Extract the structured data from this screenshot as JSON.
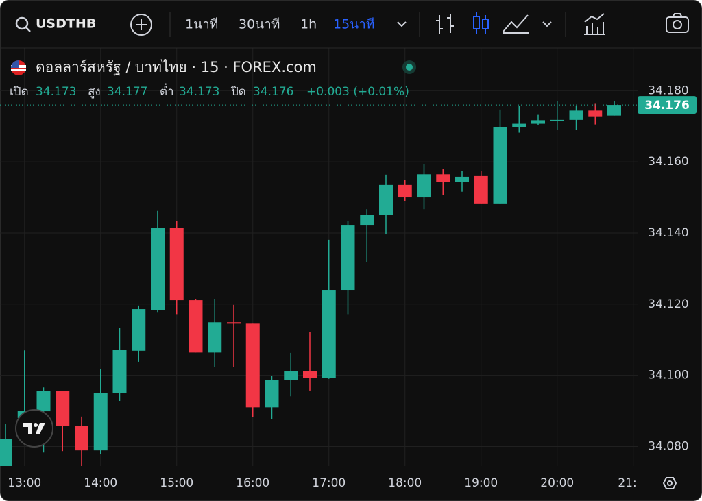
{
  "toolbar": {
    "symbol": "USDTHB",
    "intervals": [
      "1นาที",
      "30นาที",
      "1h",
      "15นาที"
    ],
    "active_interval": "15นาที"
  },
  "legend": {
    "title": "ดอลลาร์สหรัฐ / บาทไทย · 15 · FOREX.com",
    "ohlc": [
      {
        "label": "เปิด",
        "value": "34.173"
      },
      {
        "label": "สูง",
        "value": "34.177"
      },
      {
        "label": "ต่ำ",
        "value": "34.173"
      },
      {
        "label": "ปิด",
        "value": "34.176"
      }
    ],
    "change": "+0.003 (+0.01%)"
  },
  "chart_data": {
    "type": "candlestick",
    "categories": [
      null,
      "13:00",
      null,
      null,
      null,
      "14:00",
      null,
      null,
      null,
      "15:00",
      null,
      null,
      null,
      "16:00",
      null,
      null,
      null,
      "17:00",
      null,
      null,
      null,
      "18:00",
      null,
      null,
      null,
      "19:00",
      null,
      null,
      null,
      "20:00",
      null,
      null,
      null,
      "21:"
    ],
    "open": [
      34.0745,
      34.088,
      34.0899,
      34.0955,
      34.0857,
      34.0789,
      34.0951,
      34.1069,
      34.1184,
      34.1415,
      34.1211,
      34.1064,
      34.1149,
      34.1145,
      34.091,
      34.0986,
      34.1011,
      34.0992,
      34.124,
      34.1421,
      34.145,
      34.1535,
      34.15,
      34.1565,
      34.1544,
      34.156,
      34.1483,
      34.1697,
      34.1707,
      34.1717,
      34.1718,
      34.1744,
      34.173,
      null
    ],
    "high": [
      34.0864,
      34.107,
      34.0966,
      34.0955,
      34.0884,
      34.1018,
      34.1134,
      34.1196,
      34.1462,
      34.1434,
      34.1215,
      34.1215,
      34.1198,
      34.1145,
      34.0999,
      34.1063,
      34.1121,
      34.1381,
      34.1434,
      34.1467,
      34.1564,
      34.155,
      34.1593,
      34.1579,
      34.1574,
      34.1574,
      34.1747,
      34.1757,
      34.1732,
      34.177,
      34.1757,
      34.1763,
      34.177,
      null
    ],
    "low": [
      34.074,
      34.082,
      34.0783,
      34.0787,
      34.0745,
      34.0779,
      34.0928,
      34.1038,
      34.1178,
      34.1172,
      34.1064,
      34.1024,
      34.1024,
      34.0883,
      34.0877,
      34.0941,
      34.0957,
      34.099,
      34.1172,
      34.1319,
      34.1396,
      34.149,
      34.1467,
      34.1506,
      34.1516,
      34.1483,
      34.1481,
      34.1682,
      34.1703,
      34.169,
      34.169,
      34.1705,
      34.173,
      null
    ],
    "close": [
      34.0822,
      34.09,
      34.0955,
      34.0857,
      34.0789,
      34.0951,
      34.1071,
      34.1186,
      34.1415,
      34.1211,
      34.1064,
      34.1149,
      34.1145,
      34.091,
      34.0986,
      34.1011,
      34.0992,
      34.124,
      34.1421,
      34.145,
      34.1535,
      34.15,
      34.1565,
      34.1544,
      34.1558,
      34.1483,
      34.1697,
      34.1707,
      34.1717,
      34.1718,
      34.1744,
      34.1728,
      34.176,
      null
    ],
    "up_color": "#22ab94",
    "down_color": "#f23645",
    "ylim": [
      34.0745,
      34.192
    ],
    "yticks": [
      {
        "value": 34.08,
        "label": "34.080"
      },
      {
        "value": 34.1,
        "label": "34.100"
      },
      {
        "value": 34.12,
        "label": "34.120"
      },
      {
        "value": 34.14,
        "label": "34.140"
      },
      {
        "value": 34.16,
        "label": "34.160"
      },
      {
        "value": 34.18,
        "label": "34.180"
      }
    ],
    "grid": true,
    "last_price": 34.176
  }
}
